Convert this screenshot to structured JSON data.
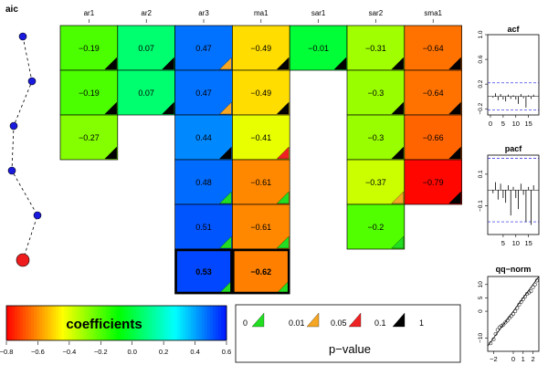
{
  "aic_panel": {
    "title": "aic",
    "points": [
      {
        "value": 0.0,
        "best": false
      },
      {
        "value": 0.05,
        "best": false
      },
      {
        "value": -0.05,
        "best": false
      },
      {
        "value": -0.06,
        "best": false
      },
      {
        "value": 0.08,
        "best": false
      },
      {
        "value": 0.0,
        "best": true
      }
    ]
  },
  "coef_table": {
    "columns": [
      "ar1",
      "ar2",
      "ar3",
      "ma1",
      "sar1",
      "sar2",
      "sma1"
    ],
    "rows": [
      [
        {
          "value": -0.19,
          "label": "−0.19",
          "p": "black"
        },
        {
          "value": 0.07,
          "label": "0.07",
          "p": "black"
        },
        {
          "value": 0.47,
          "label": "0.47",
          "p": "orange"
        },
        {
          "value": -0.49,
          "label": "−0.49",
          "p": "black"
        },
        {
          "value": -0.01,
          "label": "−0.01",
          "p": "black"
        },
        {
          "value": -0.31,
          "label": "−0.31",
          "p": "black"
        },
        {
          "value": -0.64,
          "label": "−0.64",
          "p": "black"
        }
      ],
      [
        {
          "value": -0.19,
          "label": "−0.19",
          "p": "black"
        },
        {
          "value": 0.07,
          "label": "0.07",
          "p": "black"
        },
        {
          "value": 0.47,
          "label": "0.47",
          "p": "orange"
        },
        {
          "value": -0.49,
          "label": "−0.49",
          "p": "black"
        },
        null,
        {
          "value": -0.3,
          "label": "−0.3",
          "p": "black"
        },
        {
          "value": -0.64,
          "label": "−0.64",
          "p": "black"
        }
      ],
      [
        {
          "value": -0.27,
          "label": "−0.27",
          "p": "black"
        },
        null,
        {
          "value": 0.44,
          "label": "0.44",
          "p": "black"
        },
        {
          "value": -0.41,
          "label": "−0.41",
          "p": "red"
        },
        null,
        {
          "value": -0.3,
          "label": "−0.3",
          "p": "black"
        },
        {
          "value": -0.66,
          "label": "−0.66",
          "p": "black"
        }
      ],
      [
        null,
        null,
        {
          "value": 0.48,
          "label": "0.48",
          "p": "green"
        },
        {
          "value": -0.61,
          "label": "−0.61",
          "p": "green"
        },
        null,
        {
          "value": -0.37,
          "label": "−0.37",
          "p": "orange"
        },
        {
          "value": -0.79,
          "label": "−0.79",
          "p": "black"
        }
      ],
      [
        null,
        null,
        {
          "value": 0.51,
          "label": "0.51",
          "p": "green"
        },
        {
          "value": -0.61,
          "label": "−0.61",
          "p": "green"
        },
        null,
        {
          "value": -0.2,
          "label": "−0.2",
          "p": "green"
        },
        null
      ],
      [
        null,
        null,
        {
          "value": 0.53,
          "label": "0.53",
          "p": "green",
          "best": true
        },
        {
          "value": -0.62,
          "label": "−0.62",
          "p": "green",
          "best": true
        },
        null,
        null,
        null
      ]
    ]
  },
  "colorbar": {
    "title": "coefficients",
    "range": [
      -0.8,
      0.6
    ],
    "ticks": [
      "−0.8",
      "−0.6",
      "−0.4",
      "−0.2",
      "0.0",
      "0.2",
      "0.4",
      "0.6"
    ]
  },
  "pvalue_legend": {
    "title": "p−value",
    "breaks": [
      "0",
      "0.01",
      "0.05",
      "0.1",
      "1"
    ],
    "colors": [
      "#22dd22",
      "#f5a623",
      "#ee2222",
      "#000000"
    ]
  },
  "acf_panel": {
    "title": "acf",
    "yticks": [
      "−0.2",
      "0.2",
      "0.6",
      "1.0"
    ],
    "xticks": [
      "0",
      "5",
      "10",
      "15"
    ],
    "ylim": [
      -0.3,
      1.0
    ],
    "ci": 0.22,
    "lags": [
      1,
      2,
      3,
      4,
      5,
      6,
      7,
      8,
      9,
      10,
      11,
      12,
      13,
      14,
      15,
      16,
      17
    ],
    "values": [
      -0.02,
      0.05,
      -0.06,
      0.04,
      -0.05,
      -0.08,
      0.03,
      -0.04,
      0.02,
      -0.05,
      -0.12,
      0.04,
      -0.03,
      -0.18,
      0.02,
      -0.04,
      0.03
    ]
  },
  "pacf_panel": {
    "title": "pacf",
    "yticks": [
      "−0.1",
      "0.1"
    ],
    "xticks": [
      "5",
      "10",
      "15"
    ],
    "ylim": [
      -0.28,
      0.22
    ],
    "ci": 0.2,
    "lags": [
      1,
      2,
      3,
      4,
      5,
      6,
      7,
      8,
      9,
      10,
      11,
      12,
      13,
      14,
      15,
      16,
      17
    ],
    "values": [
      -0.02,
      0.05,
      -0.06,
      0.04,
      -0.05,
      -0.08,
      0.03,
      -0.16,
      0.02,
      -0.05,
      -0.12,
      0.04,
      -0.03,
      -0.2,
      0.02,
      -0.22,
      0.03
    ]
  },
  "qq_panel": {
    "title": "qq−norm",
    "yticks": [
      "−10",
      "0",
      "5",
      "10"
    ],
    "xticks": [
      "−2",
      "0",
      "1",
      "2"
    ],
    "xlim": [
      -2.6,
      2.6
    ],
    "ylim": [
      -15,
      13
    ],
    "points": [
      [
        -2.3,
        -12
      ],
      [
        -2.0,
        -10.5
      ],
      [
        -1.8,
        -8.5
      ],
      [
        -1.6,
        -7
      ],
      [
        -1.4,
        -6
      ],
      [
        -1.2,
        -5.5
      ],
      [
        -1.0,
        -5
      ],
      [
        -0.8,
        -4.2
      ],
      [
        -0.6,
        -3.5
      ],
      [
        -0.4,
        -2.5
      ],
      [
        -0.2,
        -1.8
      ],
      [
        0.0,
        -1.0
      ],
      [
        0.2,
        0.0
      ],
      [
        0.4,
        1.2
      ],
      [
        0.6,
        2.5
      ],
      [
        0.8,
        3.5
      ],
      [
        1.0,
        4.5
      ],
      [
        1.2,
        5.5
      ],
      [
        1.4,
        6.5
      ],
      [
        1.6,
        7
      ],
      [
        1.8,
        7.5
      ],
      [
        2.0,
        9
      ],
      [
        2.2,
        10
      ],
      [
        2.4,
        11.5
      ]
    ]
  }
}
